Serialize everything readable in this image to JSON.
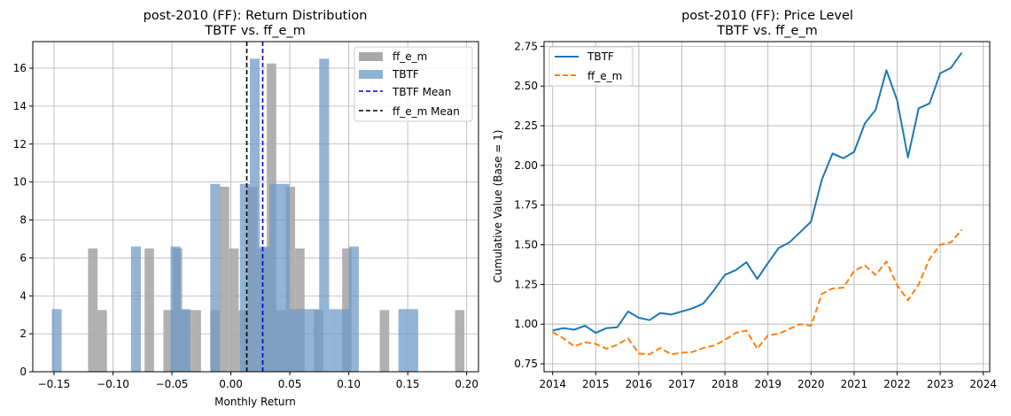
{
  "chart_data": [
    {
      "type": "bar",
      "subtype": "histogram",
      "title": "post-2010 (FF): Return Distribution",
      "subtitle": "TBTF vs. ff_e_m",
      "xlabel": "Monthly Return",
      "ylabel": "",
      "xlim": [
        -0.168,
        0.21
      ],
      "ylim": [
        0,
        17.4
      ],
      "xticks": [
        -0.15,
        -0.1,
        -0.05,
        0.0,
        0.05,
        0.1,
        0.15,
        0.2
      ],
      "xtick_labels": [
        "−0.15",
        "−0.10",
        "−0.05",
        "0.00",
        "0.05",
        "0.10",
        "0.15",
        "0.20"
      ],
      "yticks": [
        0,
        2,
        4,
        6,
        8,
        10,
        12,
        14,
        16
      ],
      "ytick_labels": [
        "0",
        "2",
        "4",
        "6",
        "8",
        "10",
        "12",
        "14",
        "16"
      ],
      "grid": true,
      "legend_position": "top-right",
      "series": [
        {
          "name": "ff_e_m",
          "color": "#a9a9a9",
          "opacity": 0.9,
          "bins": [
            {
              "x0": -0.1211,
              "x1": -0.1131,
              "height": 6.5
            },
            {
              "x0": -0.1131,
              "x1": -0.1051,
              "height": 3.25
            },
            {
              "x0": -0.0732,
              "x1": -0.0652,
              "height": 6.5
            },
            {
              "x0": -0.0572,
              "x1": -0.0492,
              "height": 3.25
            },
            {
              "x0": -0.0492,
              "x1": -0.0413,
              "height": 6.5
            },
            {
              "x0": -0.0413,
              "x1": -0.0333,
              "height": 3.25
            },
            {
              "x0": -0.0333,
              "x1": -0.0253,
              "height": 3.25
            },
            {
              "x0": -0.0173,
              "x1": -0.0094,
              "height": 3.25
            },
            {
              "x0": -0.0094,
              "x1": -0.0014,
              "height": 9.75
            },
            {
              "x0": -0.0014,
              "x1": 0.0066,
              "height": 6.5
            },
            {
              "x0": 0.0066,
              "x1": 0.0146,
              "height": 3.25
            },
            {
              "x0": 0.0146,
              "x1": 0.0226,
              "height": 9.75
            },
            {
              "x0": 0.0226,
              "x1": 0.0305,
              "height": 6.5
            },
            {
              "x0": 0.0305,
              "x1": 0.0385,
              "height": 16.25
            },
            {
              "x0": 0.0385,
              "x1": 0.0465,
              "height": 3.25
            },
            {
              "x0": 0.0465,
              "x1": 0.0545,
              "height": 9.75
            },
            {
              "x0": 0.0545,
              "x1": 0.0625,
              "height": 6.5
            },
            {
              "x0": 0.0704,
              "x1": 0.0784,
              "height": 3.25
            },
            {
              "x0": 0.0944,
              "x1": 0.1024,
              "height": 6.5
            },
            {
              "x0": 0.1263,
              "x1": 0.1343,
              "height": 3.25
            },
            {
              "x0": 0.1901,
              "x1": 0.1981,
              "height": 3.25
            }
          ]
        },
        {
          "name": "TBTF",
          "color": "#6f9bc6",
          "opacity": 0.75,
          "bins": [
            {
              "x0": -0.1519,
              "x1": -0.1435,
              "height": 3.3
            },
            {
              "x0": -0.0847,
              "x1": -0.0763,
              "height": 6.6
            },
            {
              "x0": -0.0511,
              "x1": -0.0427,
              "height": 6.6
            },
            {
              "x0": -0.0427,
              "x1": -0.0343,
              "height": 3.3
            },
            {
              "x0": -0.0175,
              "x1": -0.0091,
              "height": 9.9
            },
            {
              "x0": 0.0077,
              "x1": 0.0161,
              "height": 9.9
            },
            {
              "x0": 0.0161,
              "x1": 0.0245,
              "height": 16.5
            },
            {
              "x0": 0.0245,
              "x1": 0.0329,
              "height": 6.6
            },
            {
              "x0": 0.0329,
              "x1": 0.0413,
              "height": 9.9
            },
            {
              "x0": 0.0413,
              "x1": 0.0497,
              "height": 9.9
            },
            {
              "x0": 0.0497,
              "x1": 0.0581,
              "height": 3.3
            },
            {
              "x0": 0.0581,
              "x1": 0.0665,
              "height": 3.3
            },
            {
              "x0": 0.0665,
              "x1": 0.0749,
              "height": 3.3
            },
            {
              "x0": 0.0749,
              "x1": 0.0833,
              "height": 16.5
            },
            {
              "x0": 0.0833,
              "x1": 0.0917,
              "height": 3.3
            },
            {
              "x0": 0.0917,
              "x1": 0.1001,
              "height": 3.3
            },
            {
              "x0": 0.1001,
              "x1": 0.1085,
              "height": 6.6
            },
            {
              "x0": 0.1421,
              "x1": 0.1505,
              "height": 3.3
            },
            {
              "x0": 0.1505,
              "x1": 0.1589,
              "height": 3.3
            }
          ]
        }
      ],
      "vlines": [
        {
          "name": "TBTF Mean",
          "x": 0.027,
          "color": "#0000cd",
          "style": "dashed"
        },
        {
          "name": "ff_e_m Mean",
          "x": 0.0135,
          "color": "#000000",
          "style": "dashed"
        }
      ],
      "legend": [
        {
          "label": "ff_e_m",
          "kind": "patch",
          "color": "#a9a9a9"
        },
        {
          "label": "TBTF",
          "kind": "patch",
          "color": "#8fb1d3"
        },
        {
          "label": "TBTF Mean",
          "kind": "dashed-line",
          "color": "#0000cd"
        },
        {
          "label": "ff_e_m Mean",
          "kind": "dashed-line",
          "color": "#000000"
        }
      ]
    },
    {
      "type": "line",
      "title": "post-2010 (FF): Price Level",
      "subtitle": "TBTF vs. ff_e_m",
      "xlabel": "",
      "ylabel": "Cumulative Value (Base = 1)",
      "xlim": [
        2013.8,
        2024.15
      ],
      "ylim": [
        0.7,
        2.78
      ],
      "xticks": [
        2014,
        2015,
        2016,
        2017,
        2018,
        2019,
        2020,
        2021,
        2022,
        2023,
        2024
      ],
      "xtick_labels": [
        "2014",
        "2015",
        "2016",
        "2017",
        "2018",
        "2019",
        "2020",
        "2021",
        "2022",
        "2023",
        "2024"
      ],
      "yticks": [
        0.75,
        1.0,
        1.25,
        1.5,
        1.75,
        2.0,
        2.25,
        2.5,
        2.75
      ],
      "ytick_labels": [
        "0.75",
        "1.00",
        "1.25",
        "1.50",
        "1.75",
        "2.00",
        "2.25",
        "2.50",
        "2.75"
      ],
      "grid": true,
      "legend_position": "top-left",
      "series": [
        {
          "name": "TBTF",
          "color": "#1f77b4",
          "style": "solid",
          "x": [
            2014.0,
            2014.25,
            2014.5,
            2014.75,
            2015.0,
            2015.25,
            2015.5,
            2015.75,
            2016.0,
            2016.25,
            2016.5,
            2016.75,
            2017.0,
            2017.25,
            2017.5,
            2017.75,
            2018.0,
            2018.25,
            2018.5,
            2018.75,
            2019.0,
            2019.25,
            2019.5,
            2019.75,
            2020.0,
            2020.25,
            2020.5,
            2020.75,
            2021.0,
            2021.25,
            2021.5,
            2021.75,
            2022.0,
            2022.25,
            2022.5,
            2022.75,
            2023.0,
            2023.25,
            2023.5
          ],
          "y": [
            0.96,
            0.975,
            0.965,
            0.99,
            0.945,
            0.975,
            0.98,
            1.08,
            1.04,
            1.025,
            1.07,
            1.06,
            1.08,
            1.1,
            1.13,
            1.215,
            1.31,
            1.34,
            1.39,
            1.285,
            1.385,
            1.48,
            1.515,
            1.58,
            1.645,
            1.91,
            2.075,
            2.045,
            2.085,
            2.265,
            2.35,
            2.6,
            2.41,
            2.05,
            2.36,
            2.39,
            2.58,
            2.615,
            2.71
          ]
        },
        {
          "name": "ff_e_m",
          "color": "#ff7f0e",
          "style": "dashed",
          "x": [
            2014.0,
            2014.25,
            2014.5,
            2014.75,
            2015.0,
            2015.25,
            2015.5,
            2015.75,
            2016.0,
            2016.25,
            2016.5,
            2016.75,
            2017.0,
            2017.25,
            2017.5,
            2017.75,
            2018.0,
            2018.25,
            2018.5,
            2018.75,
            2019.0,
            2019.25,
            2019.5,
            2019.75,
            2020.0,
            2020.25,
            2020.5,
            2020.75,
            2021.0,
            2021.25,
            2021.5,
            2021.75,
            2022.0,
            2022.25,
            2022.5,
            2022.75,
            2023.0,
            2023.25,
            2023.5
          ],
          "y": [
            0.95,
            0.91,
            0.86,
            0.885,
            0.875,
            0.845,
            0.87,
            0.91,
            0.815,
            0.81,
            0.85,
            0.81,
            0.82,
            0.825,
            0.85,
            0.865,
            0.9,
            0.945,
            0.96,
            0.845,
            0.93,
            0.94,
            0.97,
            1.0,
            0.99,
            1.19,
            1.225,
            1.23,
            1.335,
            1.37,
            1.31,
            1.395,
            1.245,
            1.15,
            1.25,
            1.41,
            1.5,
            1.515,
            1.595
          ]
        }
      ],
      "legend": [
        {
          "label": "TBTF",
          "kind": "solid-line",
          "color": "#1f77b4"
        },
        {
          "label": "ff_e_m",
          "kind": "dashed-line",
          "color": "#ff7f0e"
        }
      ]
    }
  ]
}
